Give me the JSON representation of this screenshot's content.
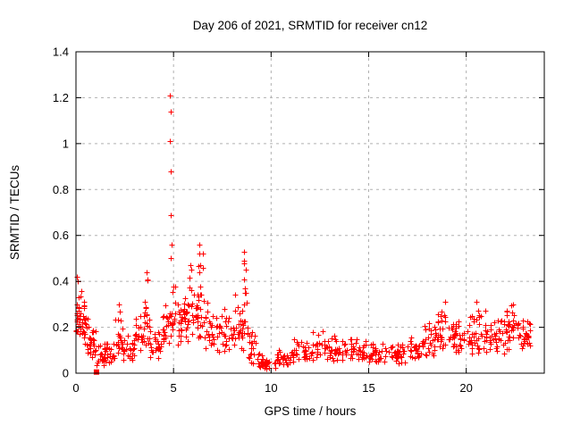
{
  "figure": {
    "title": "Day 206 of 2021, SRMTID for receiver cn12",
    "xlabel": "GPS time / hours",
    "ylabel": "SRMTID / TECUs"
  },
  "colors": {
    "marker": "#ff0000",
    "grid": "#b0b0b0",
    "axis": "#000000",
    "background": "#ffffff",
    "text": "#000000"
  },
  "chart_data": {
    "type": "scatter",
    "title": "Day 206 of 2021, SRMTID for receiver cn12",
    "xlabel": "GPS time / hours",
    "ylabel": "SRMTID / TECUs",
    "xlim": [
      0,
      24
    ],
    "ylim": [
      0,
      1.4
    ],
    "xticks": [
      0,
      5,
      10,
      15,
      20
    ],
    "xtick_labels": [
      "0",
      "5",
      "10",
      "15",
      "20"
    ],
    "yticks": [
      0,
      0.2,
      0.4,
      0.6,
      0.8,
      1.0,
      1.2,
      1.4
    ],
    "ytick_labels": [
      "0",
      "0.2",
      "0.4",
      "0.6",
      "0.8",
      "1",
      "1.2",
      "1.4"
    ],
    "grid": true,
    "legend": "none",
    "marker": {
      "shape": "plus",
      "color": "#ff0000",
      "size": 7
    },
    "series_name": "SRMTID",
    "seed": 1337,
    "band_envelope": [
      [
        0.0,
        0.3,
        0.15,
        0.42,
        26
      ],
      [
        0.3,
        0.6,
        0.1,
        0.36,
        22
      ],
      [
        0.6,
        1.0,
        0.05,
        0.26,
        24
      ],
      [
        1.0,
        1.5,
        0.03,
        0.16,
        22
      ],
      [
        1.5,
        2.0,
        0.04,
        0.15,
        22
      ],
      [
        2.0,
        2.4,
        0.07,
        0.3,
        20
      ],
      [
        2.4,
        3.0,
        0.05,
        0.18,
        26
      ],
      [
        3.0,
        3.5,
        0.08,
        0.28,
        24
      ],
      [
        3.5,
        3.8,
        0.1,
        0.42,
        18
      ],
      [
        3.8,
        4.4,
        0.06,
        0.2,
        24
      ],
      [
        4.4,
        4.8,
        0.1,
        0.32,
        20
      ],
      [
        4.8,
        5.1,
        0.14,
        0.42,
        18
      ],
      [
        5.1,
        5.6,
        0.12,
        0.38,
        26
      ],
      [
        5.6,
        6.2,
        0.12,
        0.45,
        30
      ],
      [
        6.2,
        6.6,
        0.14,
        0.5,
        22
      ],
      [
        6.6,
        7.2,
        0.1,
        0.32,
        26
      ],
      [
        7.2,
        7.9,
        0.08,
        0.3,
        28
      ],
      [
        7.9,
        8.5,
        0.08,
        0.35,
        24
      ],
      [
        8.5,
        8.8,
        0.1,
        0.42,
        16
      ],
      [
        8.8,
        9.3,
        0.04,
        0.2,
        20
      ],
      [
        9.3,
        10.3,
        0.015,
        0.1,
        34
      ],
      [
        10.3,
        11.0,
        0.03,
        0.12,
        28
      ],
      [
        11.0,
        12.0,
        0.04,
        0.16,
        34
      ],
      [
        12.0,
        13.0,
        0.05,
        0.2,
        34
      ],
      [
        13.0,
        14.0,
        0.05,
        0.18,
        34
      ],
      [
        14.0,
        15.0,
        0.05,
        0.17,
        34
      ],
      [
        15.0,
        16.0,
        0.04,
        0.15,
        34
      ],
      [
        16.0,
        17.0,
        0.04,
        0.14,
        34
      ],
      [
        17.0,
        17.8,
        0.05,
        0.18,
        28
      ],
      [
        17.8,
        18.5,
        0.07,
        0.25,
        28
      ],
      [
        18.5,
        19.3,
        0.1,
        0.31,
        32
      ],
      [
        19.3,
        20.0,
        0.08,
        0.28,
        30
      ],
      [
        20.0,
        21.0,
        0.08,
        0.3,
        40
      ],
      [
        21.0,
        22.0,
        0.08,
        0.28,
        40
      ],
      [
        22.0,
        22.7,
        0.1,
        0.3,
        34
      ],
      [
        22.7,
        23.3,
        0.1,
        0.28,
        28
      ]
    ],
    "outliers": [
      [
        4.83,
        1.21
      ],
      [
        4.84,
        1.14
      ],
      [
        4.83,
        1.01
      ],
      [
        4.85,
        0.88
      ],
      [
        4.87,
        0.69
      ],
      [
        4.88,
        0.56
      ],
      [
        4.86,
        0.5
      ],
      [
        6.33,
        0.56
      ],
      [
        6.32,
        0.52
      ],
      [
        6.35,
        0.47
      ],
      [
        6.33,
        0.44
      ],
      [
        6.5,
        0.52
      ],
      [
        6.52,
        0.46
      ],
      [
        8.62,
        0.53
      ],
      [
        8.6,
        0.49
      ],
      [
        8.63,
        0.48
      ],
      [
        8.61,
        0.41
      ],
      [
        8.64,
        0.37
      ],
      [
        8.62,
        0.3
      ],
      [
        8.72,
        0.45
      ],
      [
        8.7,
        0.35
      ],
      [
        3.62,
        0.44
      ],
      [
        3.66,
        0.41
      ],
      [
        2.2,
        0.3
      ],
      [
        2.24,
        0.27
      ],
      [
        0.05,
        0.42
      ],
      [
        0.1,
        0.4
      ],
      [
        5.85,
        0.47
      ],
      [
        5.9,
        0.45
      ],
      [
        18.9,
        0.31
      ],
      [
        20.5,
        0.31
      ],
      [
        22.4,
        0.3
      ]
    ],
    "cluster_square": {
      "x": 1.05,
      "y": 0.005
    }
  }
}
